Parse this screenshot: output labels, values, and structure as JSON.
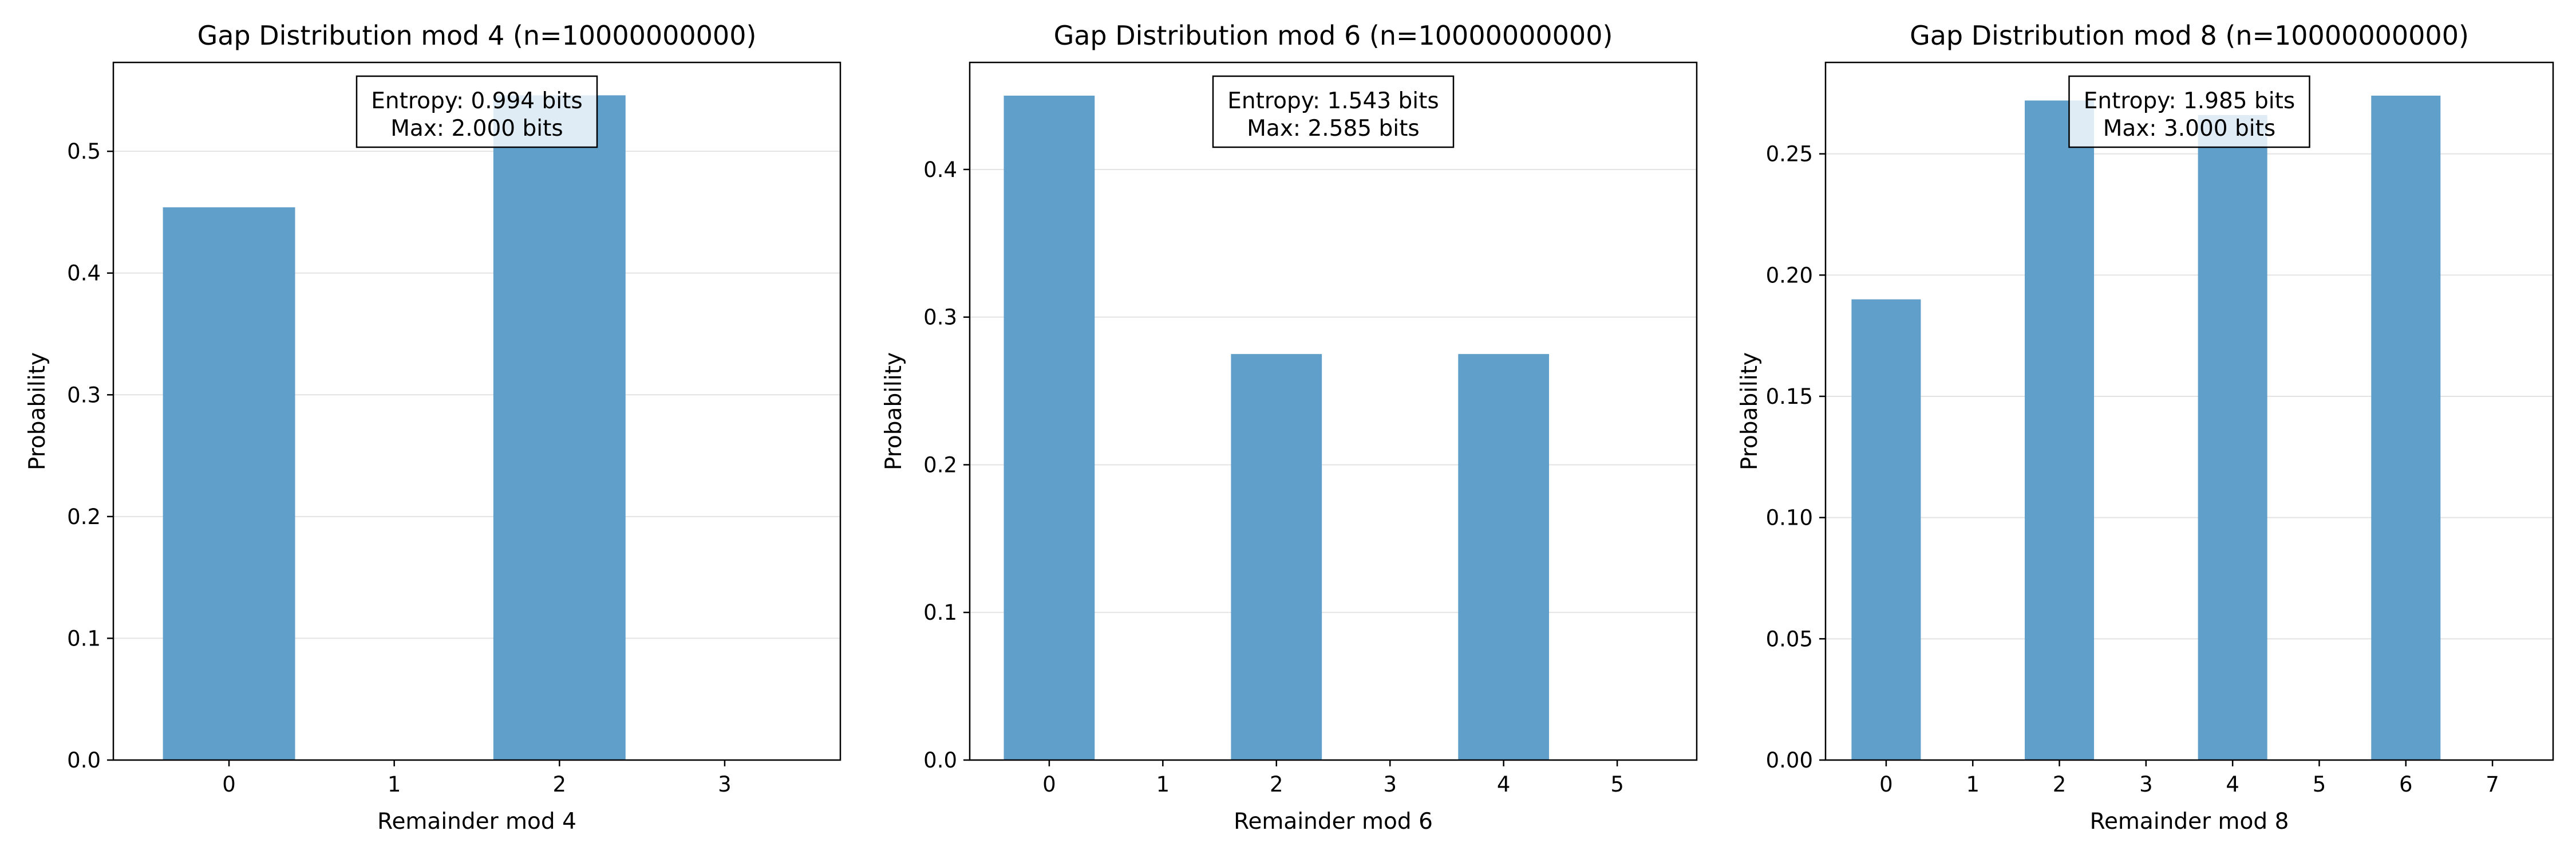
{
  "chart_data": [
    {
      "type": "bar",
      "title": "Gap Distribution mod 4 (n=10000000000)",
      "xlabel": "Remainder mod 4",
      "ylabel": "Probability",
      "categories": [
        "0",
        "1",
        "2",
        "3"
      ],
      "values": [
        0.454,
        0.0,
        0.546,
        0.0
      ],
      "ylim": [
        0,
        0.573
      ],
      "yticks": [
        "0.0",
        "0.1",
        "0.2",
        "0.3",
        "0.4",
        "0.5"
      ],
      "grid": "horizontal",
      "bar_color": "#619fcb",
      "annotation": [
        "Entropy: 0.994 bits",
        "Max: 2.000 bits"
      ]
    },
    {
      "type": "bar",
      "title": "Gap Distribution mod 6 (n=10000000000)",
      "xlabel": "Remainder mod 6",
      "ylabel": "Probability",
      "categories": [
        "0",
        "1",
        "2",
        "3",
        "4",
        "5"
      ],
      "values": [
        0.45,
        0.0,
        0.275,
        0.0,
        0.275,
        0.0
      ],
      "ylim": [
        0,
        0.4725
      ],
      "yticks": [
        "0.0",
        "0.1",
        "0.2",
        "0.3",
        "0.4"
      ],
      "grid": "horizontal",
      "bar_color": "#619fcb",
      "annotation": [
        "Entropy: 1.543 bits",
        "Max: 2.585 bits"
      ]
    },
    {
      "type": "bar",
      "title": "Gap Distribution mod 8 (n=10000000000)",
      "xlabel": "Remainder mod 8",
      "ylabel": "Probability",
      "categories": [
        "0",
        "1",
        "2",
        "3",
        "4",
        "5",
        "6",
        "7"
      ],
      "values": [
        0.19,
        0.0,
        0.272,
        0.0,
        0.266,
        0.0,
        0.274,
        0.0
      ],
      "ylim": [
        0,
        0.2877
      ],
      "yticks": [
        "0.00",
        "0.05",
        "0.10",
        "0.15",
        "0.20",
        "0.25"
      ],
      "grid": "horizontal",
      "bar_color": "#619fcb",
      "annotation": [
        "Entropy: 1.985 bits",
        "Max: 3.000 bits"
      ]
    }
  ]
}
